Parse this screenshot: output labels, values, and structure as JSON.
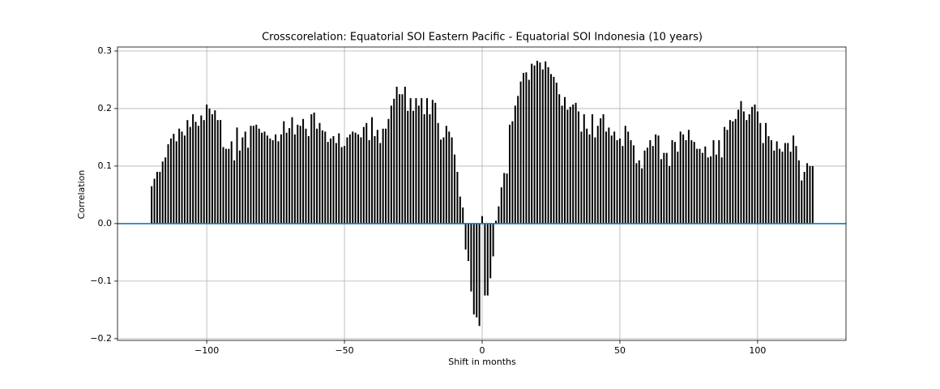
{
  "chart_data": {
    "type": "vlines",
    "title": "Crosscorelation: Equatorial SOI Eastern Pacific - Equatorial SOI Indonesia (10 years)",
    "xlabel": "Shift in months",
    "ylabel": "Correlation",
    "x": [
      -120,
      -119,
      -118,
      -117,
      -116,
      -115,
      -114,
      -113,
      -112,
      -111,
      -110,
      -109,
      -108,
      -107,
      -106,
      -105,
      -104,
      -103,
      -102,
      -101,
      -100,
      -99,
      -98,
      -97,
      -96,
      -95,
      -94,
      -93,
      -92,
      -91,
      -90,
      -89,
      -88,
      -87,
      -86,
      -85,
      -84,
      -83,
      -82,
      -81,
      -80,
      -79,
      -78,
      -77,
      -76,
      -75,
      -74,
      -73,
      -72,
      -71,
      -70,
      -69,
      -68,
      -67,
      -66,
      -65,
      -64,
      -63,
      -62,
      -61,
      -60,
      -59,
      -58,
      -57,
      -56,
      -55,
      -54,
      -53,
      -52,
      -51,
      -50,
      -49,
      -48,
      -47,
      -46,
      -45,
      -44,
      -43,
      -42,
      -41,
      -40,
      -39,
      -38,
      -37,
      -36,
      -35,
      -34,
      -33,
      -32,
      -31,
      -30,
      -29,
      -28,
      -27,
      -26,
      -25,
      -24,
      -23,
      -22,
      -21,
      -20,
      -19,
      -18,
      -17,
      -16,
      -15,
      -14,
      -13,
      -12,
      -11,
      -10,
      -9,
      -8,
      -7,
      -6,
      -5,
      -4,
      -3,
      -2,
      -1,
      0,
      1,
      2,
      3,
      4,
      5,
      6,
      7,
      8,
      9,
      10,
      11,
      12,
      13,
      14,
      15,
      16,
      17,
      18,
      19,
      20,
      21,
      22,
      23,
      24,
      25,
      26,
      27,
      28,
      29,
      30,
      31,
      32,
      33,
      34,
      35,
      36,
      37,
      38,
      39,
      40,
      41,
      42,
      43,
      44,
      45,
      46,
      47,
      48,
      49,
      50,
      51,
      52,
      53,
      54,
      55,
      56,
      57,
      58,
      59,
      60,
      61,
      62,
      63,
      64,
      65,
      66,
      67,
      68,
      69,
      70,
      71,
      72,
      73,
      74,
      75,
      76,
      77,
      78,
      79,
      80,
      81,
      82,
      83,
      84,
      85,
      86,
      87,
      88,
      89,
      90,
      91,
      92,
      93,
      94,
      95,
      96,
      97,
      98,
      99,
      100,
      101,
      102,
      103,
      104,
      105,
      106,
      107,
      108,
      109,
      110,
      111,
      112,
      113,
      114,
      115,
      116,
      117,
      118,
      119,
      120
    ],
    "values": [
      0.065,
      0.078,
      0.09,
      0.09,
      0.108,
      0.115,
      0.138,
      0.148,
      0.156,
      0.143,
      0.165,
      0.16,
      0.153,
      0.18,
      0.168,
      0.19,
      0.177,
      0.17,
      0.188,
      0.18,
      0.207,
      0.2,
      0.19,
      0.197,
      0.18,
      0.18,
      0.133,
      0.13,
      0.13,
      0.143,
      0.11,
      0.167,
      0.127,
      0.15,
      0.16,
      0.132,
      0.17,
      0.17,
      0.172,
      0.165,
      0.158,
      0.16,
      0.153,
      0.148,
      0.145,
      0.155,
      0.143,
      0.155,
      0.178,
      0.158,
      0.166,
      0.185,
      0.155,
      0.172,
      0.17,
      0.182,
      0.165,
      0.152,
      0.19,
      0.193,
      0.165,
      0.175,
      0.162,
      0.16,
      0.142,
      0.148,
      0.152,
      0.14,
      0.157,
      0.133,
      0.135,
      0.15,
      0.155,
      0.16,
      0.158,
      0.155,
      0.15,
      0.168,
      0.175,
      0.145,
      0.185,
      0.152,
      0.163,
      0.14,
      0.165,
      0.165,
      0.182,
      0.205,
      0.217,
      0.238,
      0.225,
      0.225,
      0.238,
      0.196,
      0.218,
      0.196,
      0.218,
      0.205,
      0.218,
      0.19,
      0.218,
      0.19,
      0.215,
      0.21,
      0.175,
      0.146,
      0.15,
      0.17,
      0.16,
      0.15,
      0.12,
      0.09,
      0.047,
      0.028,
      -0.045,
      -0.065,
      -0.118,
      -0.158,
      -0.163,
      -0.178,
      0.013,
      -0.125,
      -0.125,
      -0.095,
      -0.057,
      0.005,
      0.03,
      0.063,
      0.088,
      0.087,
      0.172,
      0.178,
      0.205,
      0.222,
      0.247,
      0.262,
      0.263,
      0.25,
      0.278,
      0.275,
      0.283,
      0.28,
      0.268,
      0.282,
      0.272,
      0.26,
      0.255,
      0.245,
      0.225,
      0.205,
      0.22,
      0.198,
      0.203,
      0.207,
      0.21,
      0.195,
      0.16,
      0.19,
      0.165,
      0.155,
      0.19,
      0.15,
      0.17,
      0.183,
      0.19,
      0.16,
      0.167,
      0.153,
      0.16,
      0.145,
      0.148,
      0.135,
      0.17,
      0.16,
      0.145,
      0.136,
      0.105,
      0.11,
      0.096,
      0.127,
      0.132,
      0.145,
      0.135,
      0.155,
      0.153,
      0.112,
      0.123,
      0.123,
      0.1,
      0.145,
      0.142,
      0.125,
      0.16,
      0.155,
      0.145,
      0.163,
      0.145,
      0.142,
      0.13,
      0.13,
      0.123,
      0.134,
      0.115,
      0.117,
      0.145,
      0.12,
      0.145,
      0.115,
      0.168,
      0.163,
      0.18,
      0.178,
      0.182,
      0.198,
      0.213,
      0.195,
      0.18,
      0.19,
      0.203,
      0.207,
      0.195,
      0.175,
      0.14,
      0.175,
      0.152,
      0.145,
      0.127,
      0.143,
      0.13,
      0.125,
      0.14,
      0.14,
      0.125,
      0.153,
      0.135,
      0.11,
      0.075,
      0.09,
      0.105,
      0.1,
      0.1
    ],
    "color": "#000000",
    "hline": 0,
    "hline_color": "#1f77b4",
    "xlim": [
      -132.4,
      132.1
    ],
    "ylim": [
      -0.203,
      0.307
    ],
    "xticks": [
      {
        "value": -100,
        "label": "−100"
      },
      {
        "value": -50,
        "label": "−50"
      },
      0,
      50,
      100
    ],
    "yticks": [
      {
        "value": -0.2,
        "label": "−0.2"
      },
      {
        "value": -0.1,
        "label": "−0.1"
      },
      {
        "value": 0,
        "label": "0.0"
      },
      0.1,
      0.2,
      0.3
    ],
    "grid": true
  }
}
